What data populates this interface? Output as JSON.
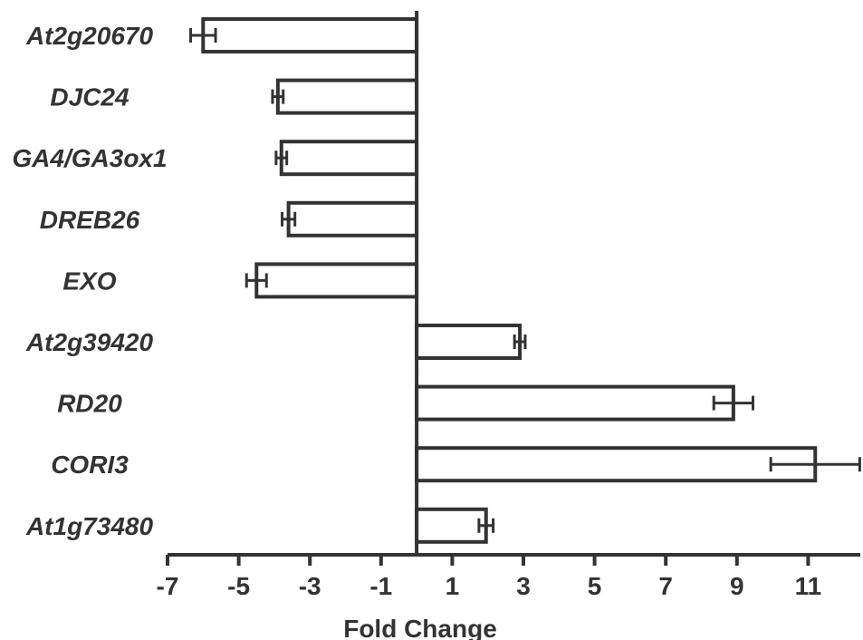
{
  "chart_data": {
    "type": "bar",
    "orientation": "horizontal",
    "categories": [
      "At2g20670",
      "DJC24",
      "GA4/GA3ox1",
      "DREB26",
      "EXO",
      "At2g39420",
      "RD20",
      "CORI3",
      "At1g73480"
    ],
    "values": [
      -6.0,
      -3.9,
      -3.8,
      -3.6,
      -4.5,
      2.9,
      8.9,
      11.2,
      1.95
    ],
    "errors": [
      0.35,
      0.15,
      0.15,
      0.18,
      0.28,
      0.15,
      0.55,
      1.25,
      0.2
    ],
    "xlabel": "Fold Change",
    "ylabel": "",
    "title": "",
    "xlim": [
      -7,
      12.4
    ],
    "xticks": [
      -7,
      -5,
      -3,
      -1,
      1,
      3,
      5,
      7,
      9,
      11
    ],
    "xtick_labels": [
      "-7",
      "-5",
      "-3",
      "-1",
      "1",
      "3",
      "5",
      "7",
      "9",
      "11"
    ],
    "grid": false,
    "colors": {
      "bar_fill": "#ffffff",
      "bar_stroke": "#333333",
      "text": "#333333"
    }
  }
}
